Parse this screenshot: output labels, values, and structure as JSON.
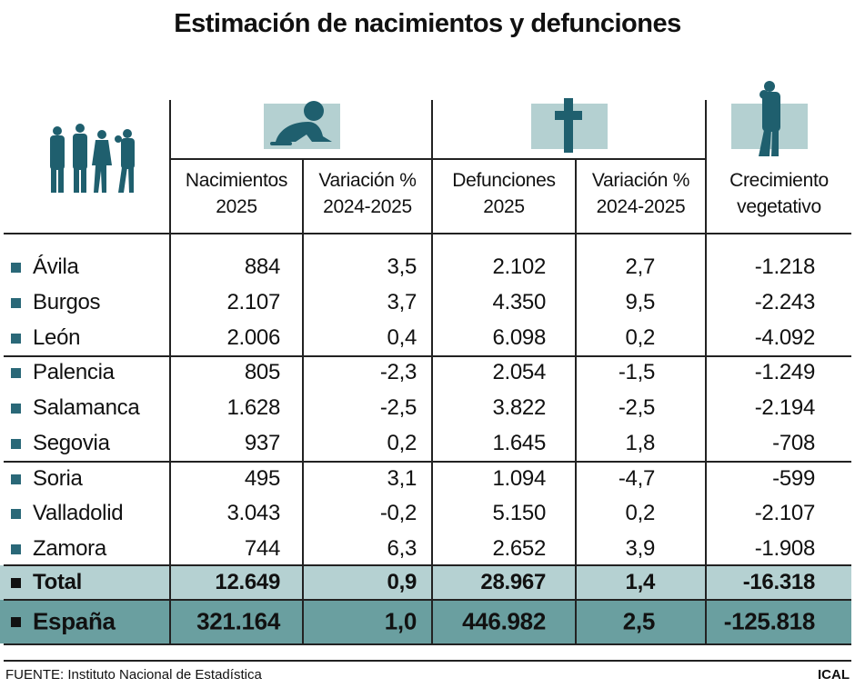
{
  "title": "Estimación de nacimientos y defunciones",
  "headers": [
    {
      "l1": "Nacimientos",
      "l2": "2025"
    },
    {
      "l1": "Variación %",
      "l2": "2024-2025"
    },
    {
      "l1": "Defunciones",
      "l2": "2025"
    },
    {
      "l1": "Variación %",
      "l2": "2024-2025"
    },
    {
      "l1": "Crecimiento",
      "l2": "vegetativo"
    }
  ],
  "rows": [
    [
      "Ávila",
      "884",
      "3,5",
      "2.102",
      "2,7",
      "-1.218"
    ],
    [
      "Burgos",
      "2.107",
      "3,7",
      "4.350",
      "9,5",
      "-2.243"
    ],
    [
      "León",
      "2.006",
      "0,4",
      "6.098",
      "0,2",
      "-4.092"
    ],
    [
      "Palencia",
      "805",
      "-2,3",
      "2.054",
      "-1,5",
      "-1.249"
    ],
    [
      "Salamanca",
      "1.628",
      "-2,5",
      "3.822",
      "-2,5",
      "-2.194"
    ],
    [
      "Segovia",
      "937",
      "0,2",
      "1.645",
      "1,8",
      "-708"
    ],
    [
      "Soria",
      "495",
      "3,1",
      "1.094",
      "-4,7",
      "-599"
    ],
    [
      "Valladolid",
      "3.043",
      "-0,2",
      "5.150",
      "0,2",
      "-2.107"
    ],
    [
      "Zamora",
      "744",
      "6,3",
      "2.652",
      "3,9",
      "-1.908"
    ]
  ],
  "total": [
    "Total",
    "12.649",
    "0,9",
    "28.967",
    "1,4",
    "-16.318"
  ],
  "spain": [
    "España",
    "321.164",
    "1,0",
    "446.982",
    "2,5",
    "-125.818"
  ],
  "footer": "FUENTE: Instituto Nacional de Estadística",
  "credit": "ICAL",
  "colors": {
    "accent": "#1f5f6e",
    "icon_bg": "#b4d0d1",
    "total_bg": "#b5d1d2",
    "spain_bg": "#6a9fa0"
  },
  "icons": [
    "family-icon",
    "baby-icon",
    "cross-icon",
    "parent-child-icon"
  ]
}
